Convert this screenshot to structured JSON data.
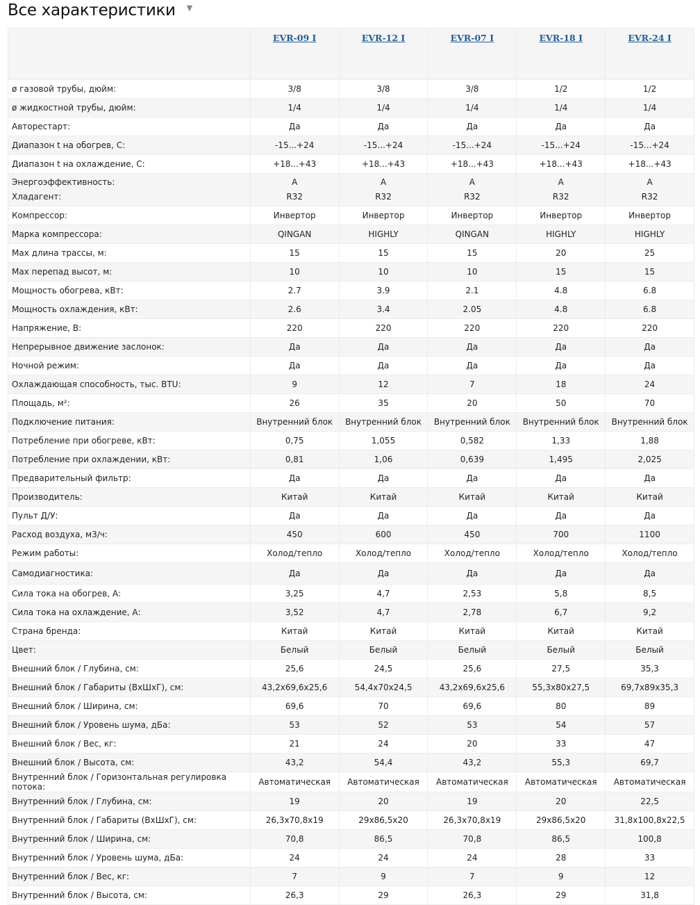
{
  "title": "Все характеристики",
  "models": [
    "EVR-09 I",
    "EVR-12 I",
    "EVR-07 I",
    "EVR-18 I",
    "EVR-24 I"
  ],
  "rows": [
    {
      "label": "ø газовой трубы, дюйм:",
      "values": [
        "3/8",
        "3/8",
        "3/8",
        "1/2",
        "1/2"
      ]
    },
    {
      "label": "ø жидкостной трубы, дюйм:",
      "values": [
        "1/4",
        "1/4",
        "1/4",
        "1/4",
        "1/4"
      ]
    },
    {
      "label": "Авторестарт:",
      "values": [
        "Да",
        "Да",
        "Да",
        "Да",
        "Да"
      ]
    },
    {
      "label": "Диапазон t на обогрев, С:",
      "values": [
        "-15...+24",
        "-15...+24",
        "-15...+24",
        "-15...+24",
        "-15...+24"
      ]
    },
    {
      "label": "Диапазон t на охлаждение, С:",
      "values": [
        "+18...+43",
        "+18...+43",
        "+18...+43",
        "+18...+43",
        "+18...+43"
      ]
    },
    {
      "label": "Энергоэффективность:",
      "label2": "Хладагент:",
      "values": [
        "A",
        "A",
        "A",
        "A",
        "A"
      ],
      "values2": [
        "R32",
        "R32",
        "R32",
        "R32",
        "R32"
      ]
    },
    {
      "label": "Компрессор:",
      "values": [
        "Инвертор",
        "Инвертор",
        "Инвертор",
        "Инвертор",
        "Инвертор"
      ]
    },
    {
      "label": "Марка компрессора:",
      "values": [
        "QINGAN",
        "HIGHLY",
        "QINGAN",
        "HIGHLY",
        "HIGHLY"
      ]
    },
    {
      "label": "Мах длина трассы, м:",
      "values": [
        "15",
        "15",
        "15",
        "20",
        "25"
      ]
    },
    {
      "label": "Мах перепад высот, м:",
      "values": [
        "10",
        "10",
        "10",
        "15",
        "15"
      ]
    },
    {
      "label": "Мощность обогрева, кВт:",
      "values": [
        "2.7",
        "3.9",
        "2.1",
        "4.8",
        "6.8"
      ]
    },
    {
      "label": "Мощность охлаждения, кВт:",
      "values": [
        "2.6",
        "3.4",
        "2.05",
        "4.8",
        "6.8"
      ]
    },
    {
      "label": "Напряжение, В:",
      "values": [
        "220",
        "220",
        "220",
        "220",
        "220"
      ]
    },
    {
      "label": "Непрерывное движение заслонок:",
      "values": [
        "Да",
        "Да",
        "Да",
        "Да",
        "Да"
      ]
    },
    {
      "label": "Ночной режим:",
      "values": [
        "Да",
        "Да",
        "Да",
        "Да",
        "Да"
      ]
    },
    {
      "label": "Охлаждающая способность, тыс. BTU:",
      "values": [
        "9",
        "12",
        "7",
        "18",
        "24"
      ]
    },
    {
      "label": "Площадь, м²:",
      "values": [
        "26",
        "35",
        "20",
        "50",
        "70"
      ]
    },
    {
      "label": "Подключение питания:",
      "values": [
        "Внутренний блок",
        "Внутренний блок",
        "Внутренний блок",
        "Внутренний блок",
        "Внутренний блок"
      ]
    },
    {
      "label": "Потребление при обогреве, кВт:",
      "values": [
        "0,75",
        "1,055",
        "0,582",
        "1,33",
        "1,88"
      ]
    },
    {
      "label": "Потребление при охлаждении, кВт:",
      "values": [
        "0,81",
        "1,06",
        "0,639",
        "1,495",
        "2,025"
      ]
    },
    {
      "label": "Предварительный фильтр:",
      "values": [
        "Да",
        "Да",
        "Да",
        "Да",
        "Да"
      ]
    },
    {
      "label": "Производитель:",
      "values": [
        "Китай",
        "Китай",
        "Китай",
        "Китай",
        "Китай"
      ]
    },
    {
      "label": "Пульт Д/У:",
      "values": [
        "Да",
        "Да",
        "Да",
        "Да",
        "Да"
      ]
    },
    {
      "label": "Расход воздуха, м3/ч:",
      "values": [
        "450",
        "600",
        "450",
        "700",
        "1100"
      ]
    },
    {
      "label": "Режим работы:",
      "values": [
        "Холод/тепло",
        "Холод/тепло",
        "Холод/тепло",
        "Холод/тепло",
        "Холод/тепло"
      ]
    },
    {
      "label": "Самодиагностика:",
      "values": [
        "Да",
        "Да",
        "Да",
        "Да",
        "Да"
      ]
    },
    {
      "label": "Сила тока на обогрев, А:",
      "values": [
        "3,25",
        "4,7",
        "2,53",
        "5,8",
        "8,5"
      ]
    },
    {
      "label": "Сила тока на охлаждение, А:",
      "values": [
        "3,52",
        "4,7",
        "2,78",
        "6,7",
        "9,2"
      ]
    },
    {
      "label": "Страна бренда:",
      "values": [
        "Китай",
        "Китай",
        "Китай",
        "Китай",
        "Китай"
      ]
    },
    {
      "label": "Цвет:",
      "values": [
        "Белый",
        "Белый",
        "Белый",
        "Белый",
        "Белый"
      ]
    },
    {
      "label": "Внешний блок / Глубина, см:",
      "values": [
        "25,6",
        "24,5",
        "25,6",
        "27,5",
        "35,3"
      ]
    },
    {
      "label": "Внешний блок / Габариты (ВхШхГ), см:",
      "values": [
        "43,2x69,6x25,6",
        "54,4x70x24,5",
        "43,2x69,6x25,6",
        "55,3x80x27,5",
        "69,7x89x35,3"
      ]
    },
    {
      "label": "Внешний блок / Ширина, см:",
      "values": [
        "69,6",
        "70",
        "69,6",
        "80",
        "89"
      ]
    },
    {
      "label": "Внешний блок / Уровень шума, дБа:",
      "values": [
        "53",
        "52",
        "53",
        "54",
        "57"
      ]
    },
    {
      "label": "Внешний блок / Вес, кг:",
      "values": [
        "21",
        "24",
        "20",
        "33",
        "47"
      ]
    },
    {
      "label": "Внешний блок / Высота, см:",
      "values": [
        "43,2",
        "54,4",
        "43,2",
        "55,3",
        "69,7"
      ]
    },
    {
      "label": "Внутренний блок / Горизонтальная регулировка потока:",
      "values": [
        "Автоматическая",
        "Автоматическая",
        "Автоматическая",
        "Автоматическая",
        "Автоматическая"
      ]
    },
    {
      "label": "Внутренний блок / Глубина, см:",
      "values": [
        "19",
        "20",
        "19",
        "20",
        "22,5"
      ]
    },
    {
      "label": "Внутренний блок / Габариты (ВхШхГ), см:",
      "values": [
        "26,3x70,8x19",
        "29x86,5x20",
        "26,3x70,8x19",
        "29x86,5x20",
        "31,8x100,8x22,5"
      ]
    },
    {
      "label": "Внутренний блок / Ширина, см:",
      "values": [
        "70,8",
        "86,5",
        "70,8",
        "86,5",
        "100,8"
      ]
    },
    {
      "label": "Внутренний блок / Уровень шума, дБа:",
      "values": [
        "24",
        "24",
        "24",
        "28",
        "33"
      ]
    },
    {
      "label": "Внутренний блок / Вес, кг:",
      "values": [
        "7",
        "9",
        "7",
        "9",
        "12"
      ]
    },
    {
      "label": "Внутренний блок / Высота, см:",
      "values": [
        "26,3",
        "29",
        "26,3",
        "29",
        "31,8"
      ]
    }
  ]
}
